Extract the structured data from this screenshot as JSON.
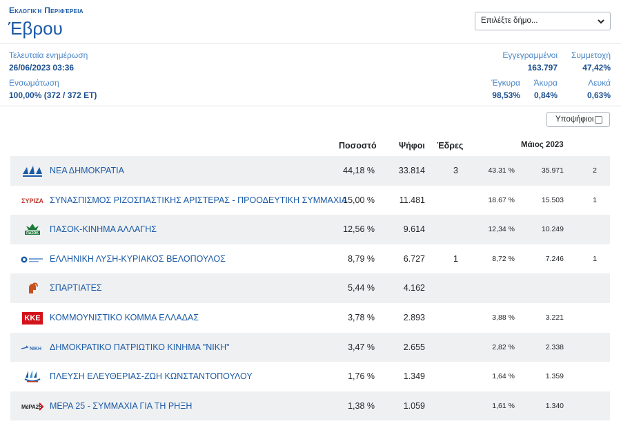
{
  "header": {
    "kicker": "Εκλογική Περιφέρεια",
    "region": "Έβρου",
    "select_placeholder": "Επιλέξτε δήμο..."
  },
  "info": {
    "last_update_label": "Τελευταία ενημέρωση",
    "last_update_value": "26/06/2023 03:36",
    "integration_label": "Ενσωμάτωση",
    "integration_value": "100,00% (372 / 372 ΕΤ)",
    "registered_label": "Εγγεγραμμένοι",
    "registered_value": "163.797",
    "turnout_label": "Συμμετοχή",
    "turnout_value": "47,42%",
    "valid_label": "Έγκυρα",
    "valid_value": "98,53%",
    "invalid_label": "Άκυρα",
    "invalid_value": "0,84%",
    "blank_label": "Λευκά",
    "blank_value": "0,63%"
  },
  "candidates_toggle": "Υποψήφιοι",
  "table": {
    "headers": {
      "pct": "Ποσοστό",
      "votes": "Ψήφοι",
      "seats": "Έδρες",
      "may": "Μάιος 2023"
    },
    "rows": [
      {
        "logo": "nd-logo-icon",
        "name": "ΝΕΑ ΔΗΜΟΚΡΑΤΙΑ",
        "pct": "44,18 %",
        "votes": "33.814",
        "seats": "3",
        "may_pct": "43.31 %",
        "may_votes": "35.971",
        "may_seats": "2"
      },
      {
        "logo": "syriza-logo-icon",
        "name": "ΣΥΝΑΣΠΙΣΜΟΣ ΡΙΖΟΣΠΑΣΤΙΚΗΣ ΑΡΙΣΤΕΡΑΣ - ΠΡΟΟΔΕΥΤΙΚΗ ΣΥΜΜΑΧΙΑ",
        "pct": "15,00 %",
        "votes": "11.481",
        "seats": "",
        "may_pct": "18.67 %",
        "may_votes": "15.503",
        "may_seats": "1"
      },
      {
        "logo": "pasok-logo-icon",
        "name": "ΠΑΣΟΚ-ΚΙΝΗΜΑ ΑΛΛΑΓΗΣ",
        "pct": "12,56 %",
        "votes": "9.614",
        "seats": "",
        "may_pct": "12,34 %",
        "may_votes": "10.249",
        "may_seats": ""
      },
      {
        "logo": "elliniki-lysi-logo-icon",
        "name": "ΕΛΛΗΝΙΚΗ ΛΥΣΗ-ΚΥΡΙΑΚΟΣ ΒΕΛΟΠΟΥΛΟΣ",
        "pct": "8,79 %",
        "votes": "6.727",
        "seats": "1",
        "may_pct": "8,72 %",
        "may_votes": "7.246",
        "may_seats": "1"
      },
      {
        "logo": "spartiates-logo-icon",
        "name": "ΣΠΑΡΤΙΑΤΕΣ",
        "pct": "5,44 %",
        "votes": "4.162",
        "seats": "",
        "may_pct": "",
        "may_votes": "",
        "may_seats": ""
      },
      {
        "logo": "kke-logo-icon",
        "name": "ΚΟΜΜΟΥΝΙΣΤΙΚΟ ΚΟΜΜΑ ΕΛΛΑΔΑΣ",
        "pct": "3,78 %",
        "votes": "2.893",
        "seats": "",
        "may_pct": "3,88 %",
        "may_votes": "3.221",
        "may_seats": ""
      },
      {
        "logo": "niki-logo-icon",
        "name": "ΔΗΜΟΚΡΑΤΙΚΟ ΠΑΤΡΙΩΤΙΚΟ ΚΙΝΗΜΑ \"ΝΙΚΗ\"",
        "pct": "3,47 %",
        "votes": "2.655",
        "seats": "",
        "may_pct": "2,82 %",
        "may_votes": "2.338",
        "may_seats": ""
      },
      {
        "logo": "plefsi-logo-icon",
        "name": "ΠΛΕΥΣΗ ΕΛΕΥΘΕΡΙΑΣ-ΖΩΗ ΚΩΝΣΤΑΝΤΟΠΟΥΛΟΥ",
        "pct": "1,76 %",
        "votes": "1.349",
        "seats": "",
        "may_pct": "1,64 %",
        "may_votes": "1.359",
        "may_seats": ""
      },
      {
        "logo": "mera25-logo-icon",
        "name": "ΜΕΡΑ 25 - ΣΥΜΜΑΧΙΑ ΓΙΑ ΤΗ ΡΗΞΗ",
        "pct": "1,38 %",
        "votes": "1.059",
        "seats": "",
        "may_pct": "1,61 %",
        "may_votes": "1.340",
        "may_seats": ""
      }
    ]
  },
  "logo_text": {
    "syriza": "ΣΥΡΙΖΑ",
    "pasok": "ΠΑΣΟΚ",
    "kke": "ΚΚΕ",
    "niki": "ΝΙΚΗ",
    "mera25": "ΜέΡΑ25"
  }
}
